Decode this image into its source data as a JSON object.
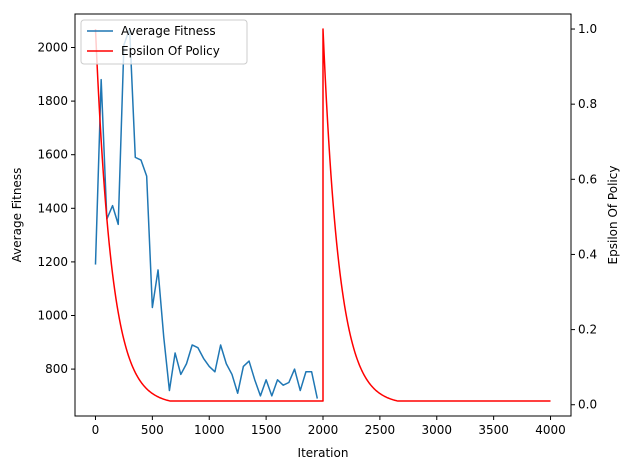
{
  "chart_data": {
    "type": "line",
    "xlabel": "Iteration",
    "ylabel_left": "Average Fitness",
    "ylabel_right": "Epsilon Of Policy",
    "xlim": [
      -180,
      4180
    ],
    "ylim_left": [
      625,
      2125
    ],
    "ylim_right": [
      -0.03,
      1.04
    ],
    "xticks": [
      0,
      500,
      1000,
      1500,
      2000,
      2500,
      3000,
      3500,
      4000
    ],
    "yticks_left": [
      800,
      1000,
      1200,
      1400,
      1600,
      1800,
      2000
    ],
    "yticks_right": [
      0.0,
      0.2,
      0.4,
      0.6,
      0.8,
      1.0
    ],
    "grid": false,
    "legend_position": "top-left",
    "series": [
      {
        "name": "Average Fitness",
        "axis": "left",
        "color": "#1f77b4",
        "x": [
          0,
          50,
          100,
          150,
          200,
          250,
          300,
          350,
          400,
          450,
          500,
          550,
          600,
          650,
          700,
          750,
          800,
          850,
          900,
          950,
          1000,
          1050,
          1100,
          1150,
          1200,
          1250,
          1300,
          1350,
          1400,
          1450,
          1500,
          1550,
          1600,
          1650,
          1700,
          1750,
          1800,
          1850,
          1900,
          1950
        ],
        "values": [
          1190,
          1880,
          1360,
          1410,
          1340,
          2010,
          2070,
          1590,
          1580,
          1520,
          1030,
          1170,
          920,
          720,
          860,
          780,
          820,
          890,
          880,
          840,
          810,
          790,
          890,
          820,
          780,
          710,
          810,
          830,
          760,
          700,
          760,
          700,
          760,
          740,
          750,
          800,
          720,
          790,
          790,
          690
        ]
      },
      {
        "name": "Epsilon Of Policy",
        "axis": "right",
        "color": "#ff0000",
        "model": "exponential-decay-with-reset",
        "start": 1.0,
        "floor": 0.01,
        "decay_per_iteration": 0.993,
        "reset_at": 2000,
        "x_end": 4000
      }
    ]
  }
}
